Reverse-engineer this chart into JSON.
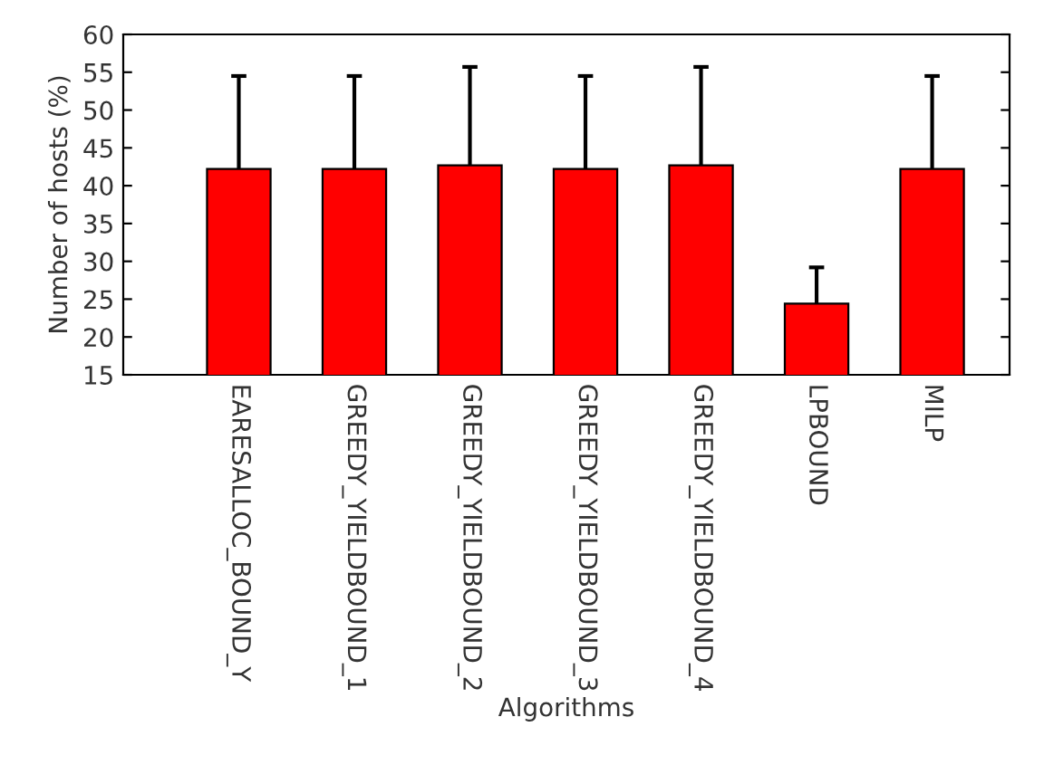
{
  "chart_data": {
    "type": "bar",
    "xlabel": "Algorithms",
    "ylabel": "Number of hosts (%)",
    "categories": [
      "EARESALLOC_BOUND_Y",
      "GREEDY_YIELDBOUND_1",
      "GREEDY_YIELDBOUND_2",
      "GREEDY_YIELDBOUND_3",
      "GREEDY_YIELDBOUND_4",
      "LPBOUND",
      "MILP"
    ],
    "values": [
      42.2,
      42.2,
      42.7,
      42.2,
      42.7,
      24.4,
      42.2
    ],
    "errors": [
      12.3,
      12.3,
      13.0,
      12.3,
      13.0,
      4.8,
      12.3
    ],
    "color": "#ff0000",
    "ylim": [
      15,
      60
    ],
    "yticks": [
      15,
      20,
      25,
      30,
      35,
      40,
      45,
      50,
      55,
      60
    ],
    "grid": false,
    "legend": false
  }
}
